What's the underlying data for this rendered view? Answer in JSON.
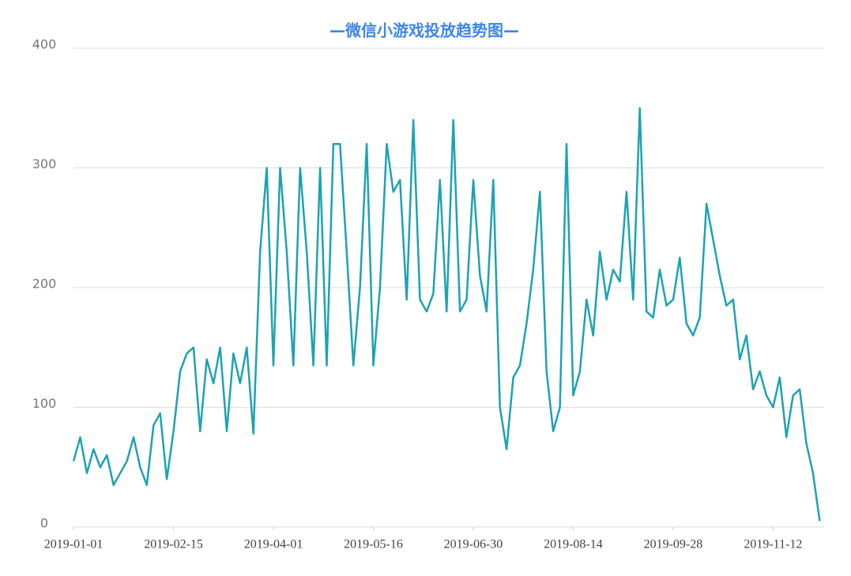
{
  "chart_data": {
    "type": "line",
    "title": "—微信小游戏投放趋势图—",
    "x": [
      "2019-01-01",
      "2019-01-04",
      "2019-01-07",
      "2019-01-10",
      "2019-01-13",
      "2019-01-16",
      "2019-01-19",
      "2019-01-22",
      "2019-01-25",
      "2019-01-28",
      "2019-01-31",
      "2019-02-03",
      "2019-02-06",
      "2019-02-09",
      "2019-02-12",
      "2019-02-15",
      "2019-02-18",
      "2019-02-21",
      "2019-02-24",
      "2019-02-27",
      "2019-03-02",
      "2019-03-05",
      "2019-03-08",
      "2019-03-11",
      "2019-03-14",
      "2019-03-17",
      "2019-03-20",
      "2019-03-23",
      "2019-03-26",
      "2019-03-29",
      "2019-04-01",
      "2019-04-04",
      "2019-04-07",
      "2019-04-10",
      "2019-04-13",
      "2019-04-16",
      "2019-04-19",
      "2019-04-22",
      "2019-04-25",
      "2019-04-28",
      "2019-05-01",
      "2019-05-04",
      "2019-05-07",
      "2019-05-10",
      "2019-05-13",
      "2019-05-16",
      "2019-05-19",
      "2019-05-22",
      "2019-05-25",
      "2019-05-28",
      "2019-05-31",
      "2019-06-03",
      "2019-06-06",
      "2019-06-09",
      "2019-06-12",
      "2019-06-15",
      "2019-06-18",
      "2019-06-21",
      "2019-06-24",
      "2019-06-27",
      "2019-06-30",
      "2019-07-03",
      "2019-07-06",
      "2019-07-09",
      "2019-07-12",
      "2019-07-15",
      "2019-07-18",
      "2019-07-21",
      "2019-07-24",
      "2019-07-27",
      "2019-07-30",
      "2019-08-02",
      "2019-08-05",
      "2019-08-08",
      "2019-08-11",
      "2019-08-14",
      "2019-08-17",
      "2019-08-20",
      "2019-08-23",
      "2019-08-26",
      "2019-08-29",
      "2019-09-01",
      "2019-09-04",
      "2019-09-07",
      "2019-09-10",
      "2019-09-13",
      "2019-09-16",
      "2019-09-19",
      "2019-09-22",
      "2019-09-25",
      "2019-09-28",
      "2019-10-01",
      "2019-10-04",
      "2019-10-07",
      "2019-10-10",
      "2019-10-13",
      "2019-10-16",
      "2019-10-19",
      "2019-10-22",
      "2019-10-25",
      "2019-10-28",
      "2019-10-31",
      "2019-11-03",
      "2019-11-06",
      "2019-11-09",
      "2019-11-12",
      "2019-11-15",
      "2019-11-18",
      "2019-11-21",
      "2019-11-24",
      "2019-11-27",
      "2019-11-30",
      "2019-12-03"
    ],
    "values": [
      55,
      75,
      45,
      65,
      50,
      60,
      35,
      45,
      55,
      75,
      50,
      35,
      85,
      95,
      40,
      80,
      130,
      145,
      150,
      80,
      140,
      120,
      150,
      80,
      145,
      120,
      150,
      78,
      230,
      300,
      135,
      300,
      230,
      135,
      300,
      230,
      135,
      300,
      135,
      320,
      320,
      230,
      135,
      200,
      320,
      135,
      200,
      320,
      280,
      290,
      190,
      340,
      190,
      180,
      195,
      290,
      180,
      340,
      180,
      190,
      290,
      210,
      180,
      290,
      100,
      65,
      125,
      135,
      170,
      215,
      280,
      130,
      80,
      100,
      320,
      110,
      130,
      190,
      160,
      230,
      190,
      215,
      205,
      280,
      190,
      350,
      180,
      175,
      215,
      185,
      190,
      225,
      170,
      160,
      175,
      270,
      240,
      210,
      185,
      190,
      140,
      160,
      115,
      130,
      110,
      100,
      125,
      75,
      110,
      115,
      70,
      45,
      5
    ],
    "color": "#1ca3b1",
    "xlim": [
      "2018-12-22",
      "2019-12-05"
    ],
    "xticks": [
      "2019-01-01",
      "2019-02-15",
      "2019-04-01",
      "2019-05-16",
      "2019-06-30",
      "2019-08-14",
      "2019-09-28",
      "2019-11-12"
    ],
    "ylim": [
      0,
      400
    ],
    "yticks": [
      0,
      100,
      200,
      300,
      400
    ],
    "grid": true
  }
}
